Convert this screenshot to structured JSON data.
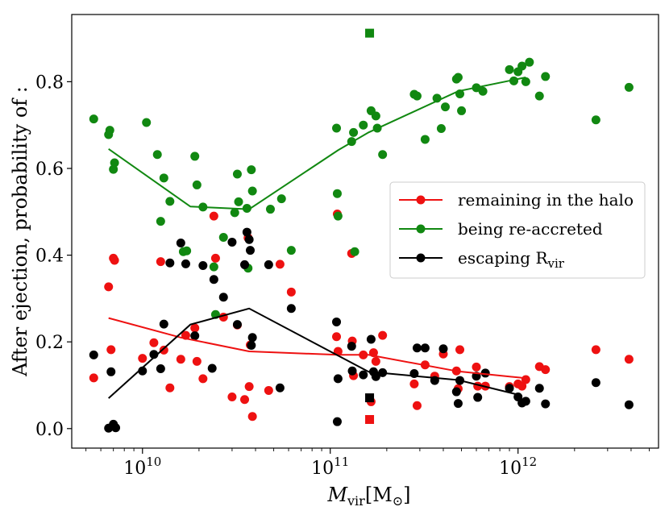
{
  "chart_data": {
    "type": "scatter",
    "xscale": "log",
    "xlim": [
      4200000000.0,
      5600000000000.0
    ],
    "ylim": [
      -0.045,
      0.955
    ],
    "xticks": [
      {
        "value": 10000000000.0,
        "base": "10",
        "exp": "10"
      },
      {
        "value": 100000000000.0,
        "base": "10",
        "exp": "11"
      },
      {
        "value": 1000000000000.0,
        "base": "10",
        "exp": "12"
      }
    ],
    "yticks": [
      "0.0",
      "0.2",
      "0.4",
      "0.6",
      "0.8"
    ],
    "xlabel": {
      "main": "M",
      "sub": "vir",
      "unit": "[M",
      "unit_sub": "⊙",
      "close": "]"
    },
    "ylabel": "After ejection, probability of :",
    "legend_position": "center-right",
    "series": [
      {
        "name": "remaining in the halo",
        "color": "#ee1111",
        "points": [
          [
            5500000000.0,
            0.117
          ],
          [
            6600000000.0,
            0.327
          ],
          [
            6800000000.0,
            0.182
          ],
          [
            7000000000.0,
            0.393
          ],
          [
            7100000000.0,
            0.388
          ],
          [
            10000000000.0,
            0.162
          ],
          [
            11500000000.0,
            0.198
          ],
          [
            12500000000.0,
            0.385
          ],
          [
            13000000000.0,
            0.181
          ],
          [
            14000000000.0,
            0.094
          ],
          [
            16000000000.0,
            0.16
          ],
          [
            17000000000.0,
            0.215
          ],
          [
            19000000000.0,
            0.232
          ],
          [
            19500000000.0,
            0.155
          ],
          [
            21000000000.0,
            0.115
          ],
          [
            24000000000.0,
            0.49
          ],
          [
            24500000000.0,
            0.393
          ],
          [
            27000000000.0,
            0.257
          ],
          [
            30000000000.0,
            0.073
          ],
          [
            32000000000.0,
            0.239
          ],
          [
            35000000000.0,
            0.067
          ],
          [
            36500000000.0,
            0.44
          ],
          [
            37000000000.0,
            0.097
          ],
          [
            37500000000.0,
            0.193
          ],
          [
            38500000000.0,
            0.028
          ],
          [
            47000000000.0,
            0.088
          ],
          [
            54000000000.0,
            0.379
          ],
          [
            62000000000.0,
            0.315
          ],
          [
            108000000000.0,
            0.212
          ],
          [
            109000000000.0,
            0.495
          ],
          [
            110000000000.0,
            0.178
          ],
          [
            130000000000.0,
            0.404
          ],
          [
            131000000000.0,
            0.202
          ],
          [
            133000000000.0,
            0.122
          ],
          [
            150000000000.0,
            0.17
          ],
          [
            165000000000.0,
            0.062
          ],
          [
            170000000000.0,
            0.175
          ],
          [
            175000000000.0,
            0.155
          ],
          [
            190000000000.0,
            0.215
          ],
          [
            280000000000.0,
            0.103
          ],
          [
            290000000000.0,
            0.053
          ],
          [
            320000000000.0,
            0.147
          ],
          [
            360000000000.0,
            0.121
          ],
          [
            400000000000.0,
            0.172
          ],
          [
            470000000000.0,
            0.133
          ],
          [
            480000000000.0,
            0.092
          ],
          [
            490000000000.0,
            0.182
          ],
          [
            600000000000.0,
            0.142
          ],
          [
            610000000000.0,
            0.098
          ],
          [
            670000000000.0,
            0.098
          ],
          [
            900000000000.0,
            0.097
          ],
          [
            1000000000000.0,
            0.103
          ],
          [
            1050000000000.0,
            0.098
          ],
          [
            1100000000000.0,
            0.113
          ],
          [
            1300000000000.0,
            0.143
          ],
          [
            1400000000000.0,
            0.136
          ],
          [
            2600000000000.0,
            0.182
          ],
          [
            3900000000000.0,
            0.16
          ]
        ],
        "line": [
          [
            6600000000.0,
            0.255
          ],
          [
            16000000000.0,
            0.21
          ],
          [
            37000000000.0,
            0.178
          ],
          [
            110000000000.0,
            0.17
          ],
          [
            160000000000.0,
            0.17
          ],
          [
            480000000000.0,
            0.132
          ],
          [
            1050000000000.0,
            0.117
          ]
        ],
        "marker_special": [
          162000000000.0,
          0.021
        ]
      },
      {
        "name": "being re-accreted",
        "color": "#118811",
        "points": [
          [
            5500000000.0,
            0.714
          ],
          [
            6600000000.0,
            0.678
          ],
          [
            6700000000.0,
            0.688
          ],
          [
            7000000000.0,
            0.598
          ],
          [
            7100000000.0,
            0.613
          ],
          [
            10500000000.0,
            0.706
          ],
          [
            12000000000.0,
            0.632
          ],
          [
            12500000000.0,
            0.478
          ],
          [
            13000000000.0,
            0.578
          ],
          [
            14000000000.0,
            0.524
          ],
          [
            16500000000.0,
            0.408
          ],
          [
            17200000000.0,
            0.41
          ],
          [
            19000000000.0,
            0.628
          ],
          [
            19500000000.0,
            0.562
          ],
          [
            21000000000.0,
            0.511
          ],
          [
            24000000000.0,
            0.373
          ],
          [
            24500000000.0,
            0.263
          ],
          [
            27000000000.0,
            0.441
          ],
          [
            31000000000.0,
            0.498
          ],
          [
            32000000000.0,
            0.587
          ],
          [
            32500000000.0,
            0.523
          ],
          [
            36000000000.0,
            0.508
          ],
          [
            36500000000.0,
            0.37
          ],
          [
            38000000000.0,
            0.597
          ],
          [
            38500000000.0,
            0.548
          ],
          [
            48000000000.0,
            0.506
          ],
          [
            55000000000.0,
            0.53
          ],
          [
            62000000000.0,
            0.411
          ],
          [
            108000000000.0,
            0.693
          ],
          [
            109000000000.0,
            0.542
          ],
          [
            110000000000.0,
            0.49
          ],
          [
            130000000000.0,
            0.662
          ],
          [
            133000000000.0,
            0.683
          ],
          [
            135000000000.0,
            0.408
          ],
          [
            150000000000.0,
            0.7
          ],
          [
            165000000000.0,
            0.733
          ],
          [
            175000000000.0,
            0.721
          ],
          [
            178000000000.0,
            0.693
          ],
          [
            190000000000.0,
            0.632
          ],
          [
            280000000000.0,
            0.771
          ],
          [
            290000000000.0,
            0.767
          ],
          [
            320000000000.0,
            0.667
          ],
          [
            370000000000.0,
            0.762
          ],
          [
            390000000000.0,
            0.692
          ],
          [
            410000000000.0,
            0.742
          ],
          [
            470000000000.0,
            0.806
          ],
          [
            480000000000.0,
            0.81
          ],
          [
            490000000000.0,
            0.772
          ],
          [
            500000000000.0,
            0.733
          ],
          [
            600000000000.0,
            0.786
          ],
          [
            650000000000.0,
            0.778
          ],
          [
            900000000000.0,
            0.828
          ],
          [
            950000000000.0,
            0.802
          ],
          [
            1000000000000.0,
            0.823
          ],
          [
            1050000000000.0,
            0.836
          ],
          [
            1100000000000.0,
            0.8
          ],
          [
            1150000000000.0,
            0.845
          ],
          [
            1300000000000.0,
            0.767
          ],
          [
            1400000000000.0,
            0.812
          ],
          [
            2600000000000.0,
            0.712
          ],
          [
            3900000000000.0,
            0.787
          ]
        ],
        "line": [
          [
            6600000000.0,
            0.645
          ],
          [
            18000000000.0,
            0.512
          ],
          [
            37000000000.0,
            0.506
          ],
          [
            110000000000.0,
            0.642
          ],
          [
            160000000000.0,
            0.683
          ],
          [
            480000000000.0,
            0.778
          ],
          [
            1100000000000.0,
            0.81
          ]
        ],
        "marker_special": [
          162000000000.0,
          0.912
        ]
      },
      {
        "name": "escaping R",
        "name_sub": "vir",
        "color": "#000000",
        "points": [
          [
            5500000000.0,
            0.17
          ],
          [
            6600000000.0,
            0.001
          ],
          [
            6800000000.0,
            0.131
          ],
          [
            7000000000.0,
            0.01
          ],
          [
            7200000000.0,
            0.002
          ],
          [
            10000000000.0,
            0.133
          ],
          [
            11500000000.0,
            0.171
          ],
          [
            12500000000.0,
            0.138
          ],
          [
            13000000000.0,
            0.241
          ],
          [
            14000000000.0,
            0.382
          ],
          [
            16000000000.0,
            0.428
          ],
          [
            17000000000.0,
            0.38
          ],
          [
            19000000000.0,
            0.214
          ],
          [
            21000000000.0,
            0.376
          ],
          [
            23500000000.0,
            0.139
          ],
          [
            24000000000.0,
            0.344
          ],
          [
            27000000000.0,
            0.303
          ],
          [
            30000000000.0,
            0.43
          ],
          [
            32000000000.0,
            0.24
          ],
          [
            35000000000.0,
            0.378
          ],
          [
            36000000000.0,
            0.453
          ],
          [
            37000000000.0,
            0.436
          ],
          [
            37500000000.0,
            0.411
          ],
          [
            38000000000.0,
            0.192
          ],
          [
            38500000000.0,
            0.21
          ],
          [
            47000000000.0,
            0.378
          ],
          [
            54000000000.0,
            0.094
          ],
          [
            62000000000.0,
            0.277
          ],
          [
            108000000000.0,
            0.246
          ],
          [
            109000000000.0,
            0.016
          ],
          [
            110000000000.0,
            0.115
          ],
          [
            130000000000.0,
            0.19
          ],
          [
            131000000000.0,
            0.133
          ],
          [
            150000000000.0,
            0.124
          ],
          [
            165000000000.0,
            0.206
          ],
          [
            170000000000.0,
            0.131
          ],
          [
            175000000000.0,
            0.12
          ],
          [
            190000000000.0,
            0.129
          ],
          [
            280000000000.0,
            0.127
          ],
          [
            290000000000.0,
            0.186
          ],
          [
            320000000000.0,
            0.186
          ],
          [
            360000000000.0,
            0.111
          ],
          [
            400000000000.0,
            0.184
          ],
          [
            470000000000.0,
            0.085
          ],
          [
            480000000000.0,
            0.058
          ],
          [
            490000000000.0,
            0.111
          ],
          [
            600000000000.0,
            0.121
          ],
          [
            610000000000.0,
            0.072
          ],
          [
            670000000000.0,
            0.128
          ],
          [
            900000000000.0,
            0.093
          ],
          [
            1000000000000.0,
            0.073
          ],
          [
            1050000000000.0,
            0.059
          ],
          [
            1100000000000.0,
            0.063
          ],
          [
            1300000000000.0,
            0.093
          ],
          [
            1400000000000.0,
            0.057
          ],
          [
            2600000000000.0,
            0.106
          ],
          [
            3900000000000.0,
            0.055
          ]
        ],
        "line": [
          [
            6600000000.0,
            0.07
          ],
          [
            18000000000.0,
            0.24
          ],
          [
            37000000000.0,
            0.277
          ],
          [
            160000000000.0,
            0.131
          ],
          [
            480000000000.0,
            0.112
          ],
          [
            1050000000000.0,
            0.076
          ]
        ],
        "marker_special": [
          162000000000.0,
          0.071
        ]
      }
    ]
  }
}
